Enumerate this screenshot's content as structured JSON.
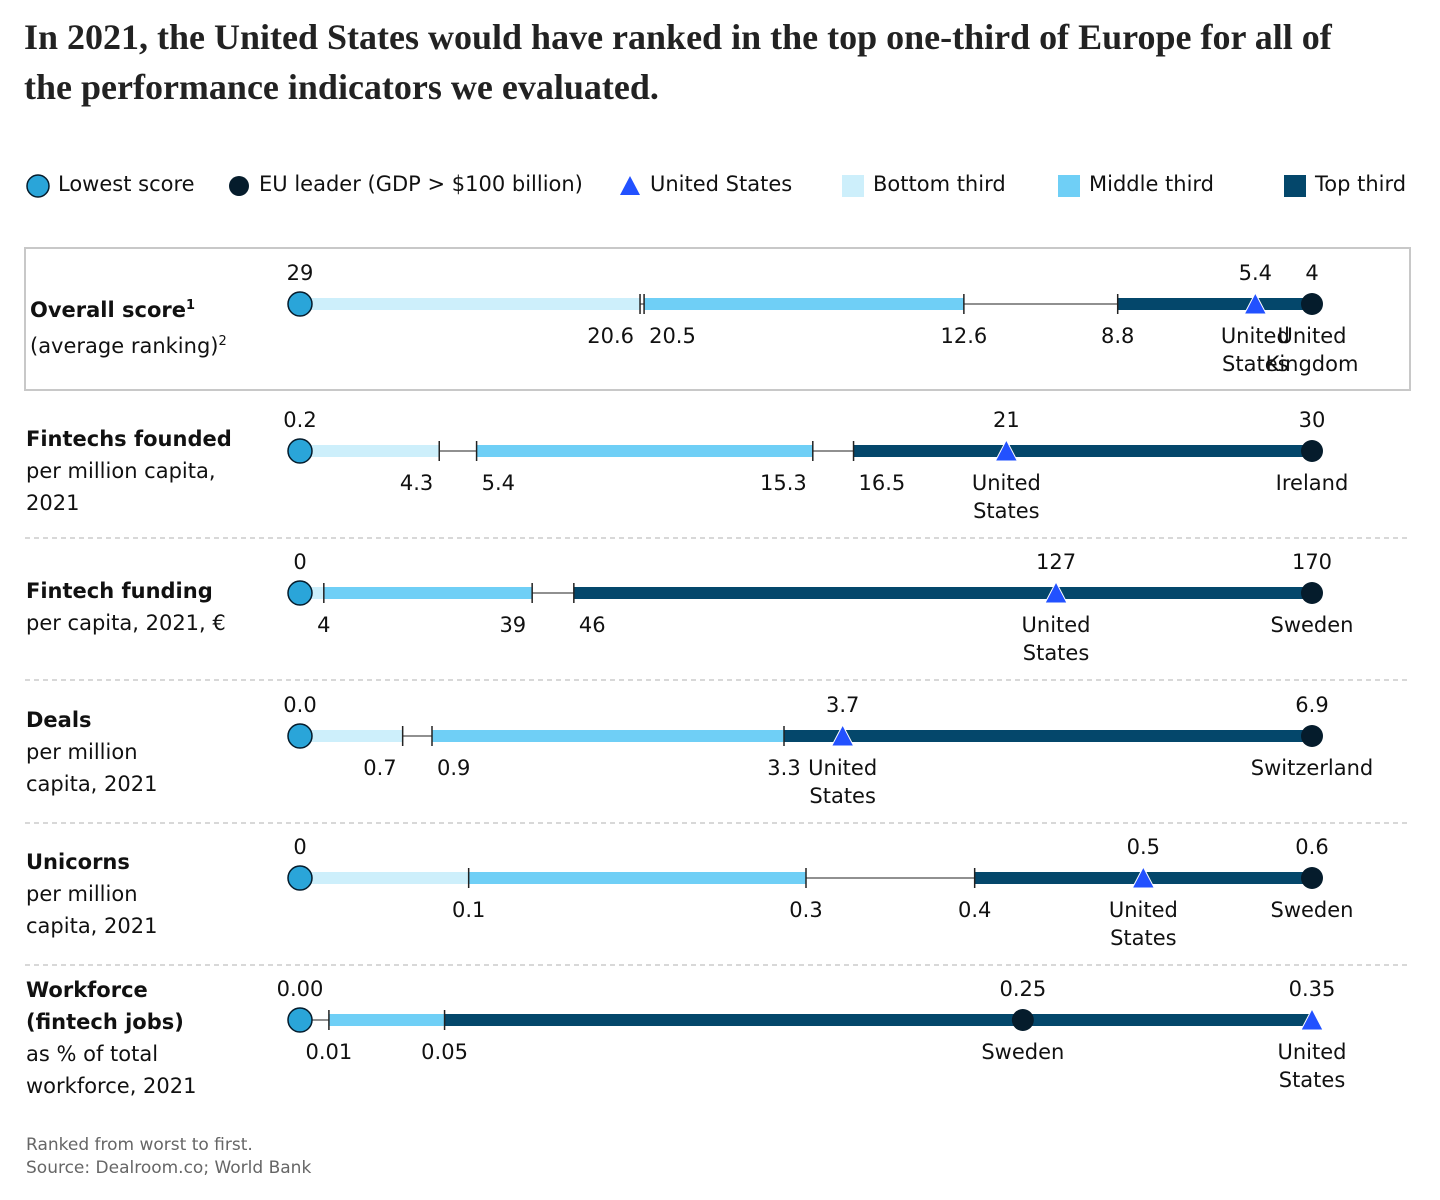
{
  "chart_data": {
    "type": "dot-range",
    "title": "In 2021, the United States would have ranked in the top one-third of Europe for all of the performance indicators we evaluated.",
    "legend": [
      "Lowest score",
      "EU leader (GDP > $100 billion)",
      "United States",
      "Bottom third",
      "Middle third",
      "Top third"
    ],
    "colors": {
      "lowest": "#2aa5d9",
      "leader": "#051c2c",
      "us": "#2251ff",
      "bottom": "#cdeffb",
      "middle": "#6fcff6",
      "top": "#04476b"
    },
    "rows": [
      {
        "title": "Overall score",
        "title_note": "1",
        "subtitle": "(average ranking)",
        "subtitle_note": "2",
        "lowest": 29,
        "bottom_end": 20.6,
        "middle_start": 20.5,
        "middle_end": 12.6,
        "top_start": 8.8,
        "us": 5.4,
        "us_name": "United States",
        "leader": 4,
        "leader_name": "United Kingdom"
      },
      {
        "title": "Fintechs founded",
        "subtitle": "per million capita, 2021",
        "lowest": 0.2,
        "bottom_end": 4.3,
        "middle_start": 5.4,
        "middle_end": 15.3,
        "top_start": 16.5,
        "us": 21,
        "us_name": "United States",
        "leader": 30,
        "leader_name": "Ireland"
      },
      {
        "title": "Fintech funding",
        "subtitle": "per capita, 2021, €",
        "lowest": 0,
        "bottom_end": 4,
        "middle_end": 39,
        "top_start": 46,
        "us": 127,
        "us_name": "United States",
        "leader": 170,
        "leader_name": "Sweden"
      },
      {
        "title": "Deals",
        "subtitle": "per million capita, 2021",
        "lowest": 0,
        "value_labels": {
          "lowest": "0.0"
        },
        "bottom_end": 0.7,
        "middle_start": 0.9,
        "middle_end": 3.3,
        "us": 3.7,
        "us_name": "United States",
        "leader": 6.9,
        "leader_name": "Switzerland"
      },
      {
        "title": "Unicorns",
        "subtitle": "per million capita, 2021",
        "lowest": 0,
        "bottom_end": 0.1,
        "middle_end": 0.3,
        "top_start": 0.4,
        "us": 0.5,
        "us_name": "United States",
        "leader": 0.6,
        "leader_name": "Sweden"
      },
      {
        "title": "Workforce (fintech jobs)",
        "subtitle": "as % of total workforce, 2021",
        "lowest": 0,
        "value_labels": {
          "lowest": "0.00"
        },
        "middle_start": 0.01,
        "middle_end": 0.05,
        "us": 0.35,
        "us_name": "United States",
        "leader": 0.25,
        "leader_name": "Sweden"
      }
    ],
    "notes": [
      "Ranked from worst to first.",
      "Source: Dealroom.co; World Bank"
    ]
  }
}
